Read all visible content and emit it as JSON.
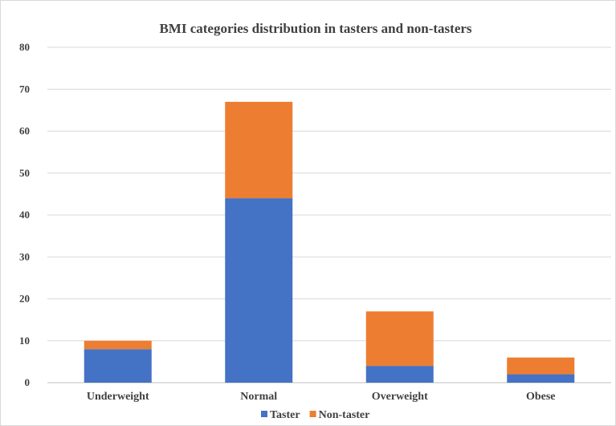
{
  "chart_data": {
    "type": "bar",
    "stacked": true,
    "title": "BMI categories distribution  in tasters and non-tasters",
    "xlabel": "",
    "ylabel": "",
    "categories": [
      "Underweight",
      "Normal",
      "Overweight",
      "Obese"
    ],
    "series": [
      {
        "name": "Taster",
        "values": [
          8,
          44,
          4,
          2
        ],
        "color": "#4472c4"
      },
      {
        "name": "Non-taster",
        "values": [
          2,
          23,
          13,
          4
        ],
        "color": "#ed7d31"
      }
    ],
    "ylim": [
      0,
      80
    ],
    "yticks": [
      "0",
      "10",
      "20",
      "30",
      "40",
      "50",
      "60",
      "70",
      "80"
    ],
    "grid": true,
    "legend_position": "bottom"
  }
}
